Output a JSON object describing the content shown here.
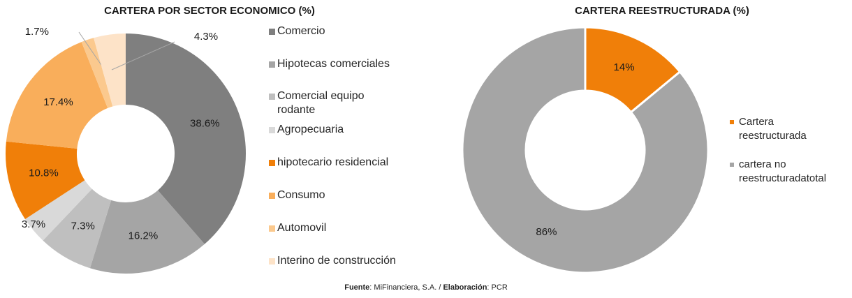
{
  "chart_data": [
    {
      "type": "donut",
      "title": "CARTERA POR SECTOR ECONOMICO (%)",
      "categories": [
        "Comercio",
        "Hipotecas comerciales",
        "Comercial equipo rodante",
        "Agropecuaria",
        "hipotecario residencial",
        "Consumo",
        "Automovil",
        "Interino de construcción"
      ],
      "values": [
        38.6,
        16.2,
        7.3,
        3.7,
        10.8,
        17.4,
        1.7,
        4.3
      ],
      "value_labels": [
        "38.6%",
        "16.2%",
        "7.3%",
        "3.7%",
        "10.8%",
        "17.4%",
        "1.7%",
        "4.3%"
      ],
      "colors": [
        "#7f7f7f",
        "#a5a5a5",
        "#bfbfbf",
        "#d9d9d9",
        "#f07f09",
        "#f9ae5b",
        "#fbc98e",
        "#fde3c8"
      ],
      "legend": "right"
    },
    {
      "type": "donut",
      "title": "CARTERA REESTRUCTURADA (%)",
      "categories": [
        "Cartera reestructurada",
        "cartera no reestructuradatotal"
      ],
      "values": [
        14,
        86
      ],
      "value_labels": [
        "14%",
        "86%"
      ],
      "colors": [
        "#f07f09",
        "#a5a5a5"
      ],
      "legend": "right"
    }
  ],
  "footer": {
    "source_label": "Fuente",
    "source": ": MiFinanciera, S.A. / ",
    "author_label": "Elaboración",
    "author": ": PCR"
  }
}
